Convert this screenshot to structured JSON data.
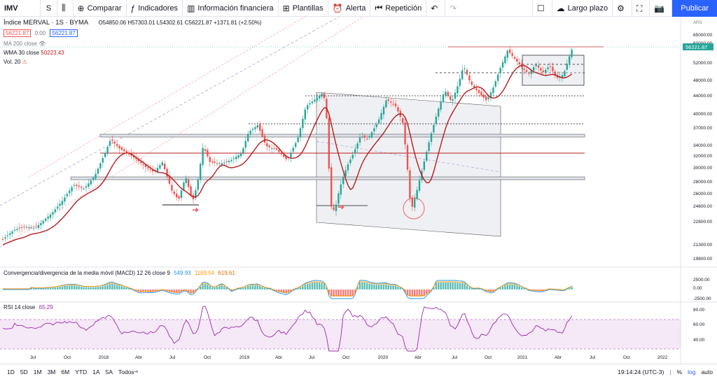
{
  "toolbar": {
    "symbol": "IMV",
    "interval": "S",
    "compare": "Comparar",
    "indicators": "Indicadores",
    "financial": "Información financiera",
    "templates": "Plantillas",
    "alert": "Alerta",
    "replay": "Repetición",
    "layout": "Largo plazo",
    "publish": "Publicar"
  },
  "legend": {
    "title": "Índice MERVAL · 1S · BYMA",
    "ohlc": "O54850.06 H57303.01 L54302.61 C56221.87 +1371.81 (+2.50%)",
    "bid": "56221.87",
    "spread": "0.00",
    "ask": "56221.87",
    "ma200": "MA 200 close",
    "wma_label": "WMA 30 close",
    "wma_value": "50223.43",
    "vol": "Vol. 20"
  },
  "macd": {
    "label": "Convergencia/divergencia de la media móvil (MACD) 12 26 close 9",
    "v1": "549.93",
    "v2": "1169.54",
    "v3": "619.61"
  },
  "rsi": {
    "label": "RSI 14 close",
    "value": "65.29"
  },
  "price_axis": {
    "currency": "ARS",
    "ticks": [
      "65000.00",
      "60000.00",
      "56221.87",
      "52000.00",
      "48000.00",
      "44000.00",
      "40000.00",
      "37000.00",
      "34000.00",
      "32000.00",
      "30000.00",
      "28000.00",
      "26000.00",
      "24600.00",
      "22800.00",
      "21300.00",
      "19800.00"
    ],
    "current": "56221.87"
  },
  "macd_axis": [
    "2500.00",
    "0.00",
    "-2500.00"
  ],
  "rsi_axis": [
    "80.00",
    "60.00",
    "40.00"
  ],
  "time_axis": [
    "Jul",
    "Oct",
    "2018",
    "Abr",
    "Jul",
    "Oct",
    "2019",
    "Abr",
    "Jul",
    "Oct",
    "2020",
    "Abr",
    "Jul",
    "Oct",
    "2021",
    "Abr",
    "Jul",
    "Oct",
    "2022"
  ],
  "bottom": {
    "periods": [
      "1D",
      "5D",
      "1M",
      "3M",
      "6M",
      "YTD",
      "1A",
      "5A",
      "Todos"
    ],
    "time": "19:14:24 (UTC-3)",
    "pct": "%",
    "log": "log",
    "auto": "auto"
  },
  "colors": {
    "up": "#26a69a",
    "down": "#ef5350",
    "wma": "#b71c1c",
    "accent": "#2962ff",
    "rsi": "#9c27b0"
  }
}
